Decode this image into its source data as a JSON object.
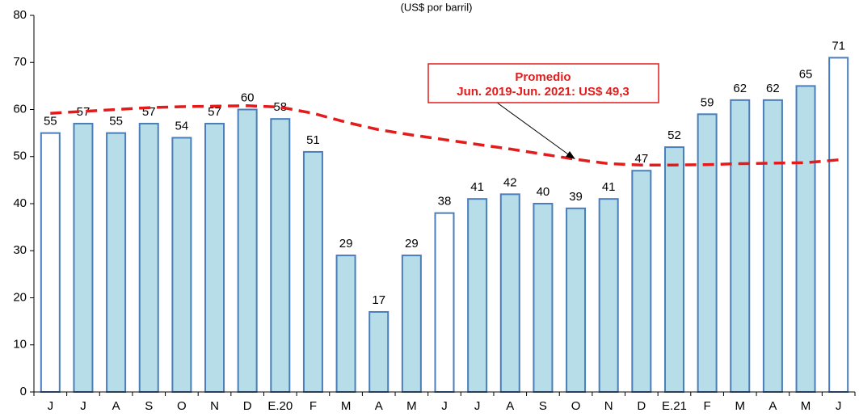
{
  "chart_data": {
    "type": "bar",
    "subtitle": "(US$ por barril)",
    "categories": [
      "J",
      "J",
      "A",
      "S",
      "O",
      "N",
      "D",
      "E.20",
      "F",
      "M",
      "A",
      "M",
      "J",
      "J",
      "A",
      "S",
      "O",
      "N",
      "D",
      "E.21",
      "F",
      "M",
      "A",
      "M",
      "J"
    ],
    "values": [
      55,
      57,
      55,
      57,
      54,
      57,
      60,
      58,
      51,
      29,
      17,
      29,
      38,
      41,
      42,
      40,
      39,
      41,
      47,
      52,
      59,
      62,
      62,
      65,
      71
    ],
    "colors": [
      "#ffffff",
      "#b7dde8",
      "#b7dde8",
      "#b7dde8",
      "#b7dde8",
      "#b7dde8",
      "#b7dde8",
      "#b7dde8",
      "#b7dde8",
      "#b7dde8",
      "#b7dde8",
      "#b7dde8",
      "#ffffff",
      "#b7dde8",
      "#b7dde8",
      "#b7dde8",
      "#b7dde8",
      "#b7dde8",
      "#b7dde8",
      "#b7dde8",
      "#b7dde8",
      "#b7dde8",
      "#b7dde8",
      "#b7dde8",
      "#ffffff"
    ],
    "edge_color": "#4a7ebb",
    "line": {
      "values": [
        59.2,
        59.6,
        60.0,
        60.4,
        60.6,
        60.7,
        60.8,
        60.5,
        59.2,
        57.3,
        55.7,
        54.6,
        53.6,
        52.6,
        51.6,
        50.5,
        49.4,
        48.5,
        48.2,
        48.2,
        48.3,
        48.5,
        48.6,
        48.7,
        49.3
      ],
      "color": "#e31b1b",
      "dashed": true
    },
    "annotation": {
      "title": "Promedio",
      "text": "Jun. 2019-Jun. 2021: US$ 49,3",
      "color": "#e31b1b"
    },
    "ylim": [
      0,
      80
    ],
    "yticks": [
      0,
      10,
      20,
      30,
      40,
      50,
      60,
      70,
      80
    ],
    "grid": false
  }
}
